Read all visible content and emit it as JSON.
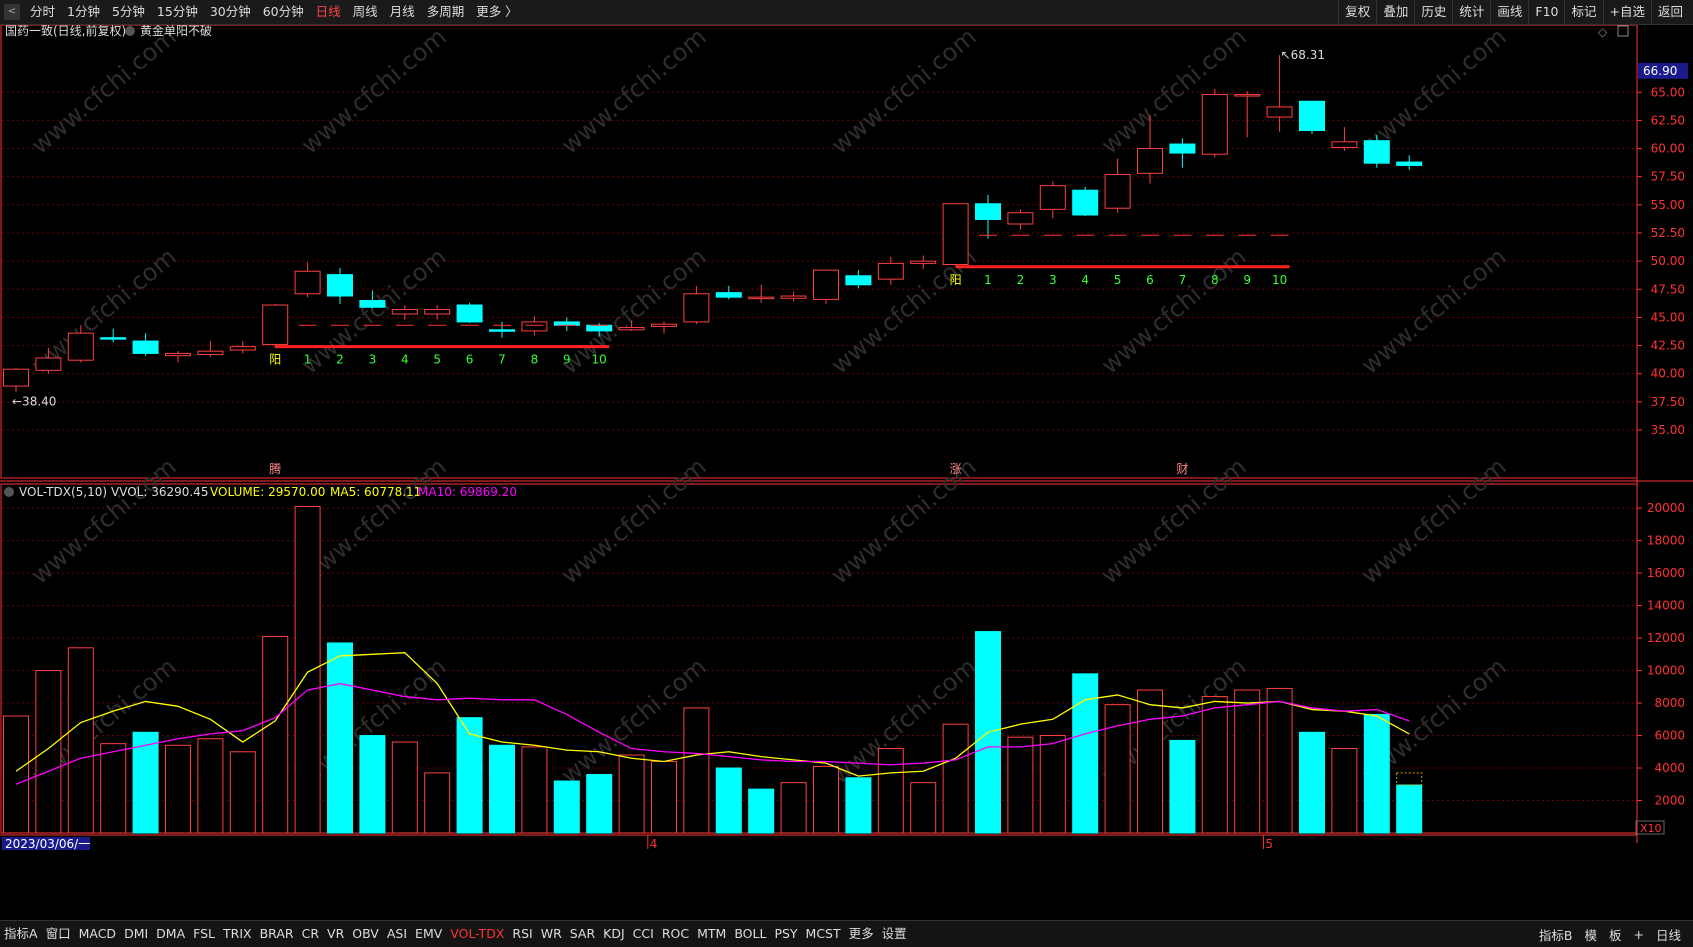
{
  "topbar": {
    "back_label": "<",
    "tabs": [
      "分时",
      "1分钟",
      "5分钟",
      "15分钟",
      "30分钟",
      "60分钟",
      "日线",
      "周线",
      "月线",
      "多周期",
      "更多 〉"
    ],
    "active_tab": "日线",
    "tools": [
      "复权",
      "叠加",
      "历史",
      "统计",
      "画线",
      "F10",
      "标记",
      "+自选",
      "返回"
    ]
  },
  "main_panel": {
    "title": "国药一致(日线,前复权)",
    "indicator": "黄金单阳不破",
    "price_box": "66.90",
    "high_label": "68.31",
    "low_label": "38.40",
    "event_markers": [
      {
        "index": 8,
        "label": "腾"
      },
      {
        "index": 29,
        "label": "涨"
      },
      {
        "index": 36,
        "label": "财"
      }
    ],
    "pattern1": {
      "start_label": "阳",
      "start_index": 8,
      "counts": [
        "1",
        "2",
        "3",
        "4",
        "5",
        "6",
        "7",
        "8",
        "9",
        "10"
      ],
      "level": 42.4,
      "dash_level": 44.3
    },
    "pattern2": {
      "start_label": "阳",
      "start_index": 29,
      "counts": [
        "1",
        "2",
        "3",
        "4",
        "5",
        "6",
        "7",
        "8",
        "9",
        "10"
      ],
      "level": 49.5,
      "dash_level": 52.3
    }
  },
  "volume_panel": {
    "name": "VOL-TDX(5,10)",
    "vvol": "VVOL: 36290.45",
    "volume": "VOLUME: 29570.00",
    "ma5": "MA5: 60778.11",
    "ma10": "MA10: 69869.20",
    "unit": "X10"
  },
  "date_axis": {
    "start_date": "2023/03/06/一",
    "month_marks": [
      {
        "index": 20,
        "label": "4"
      },
      {
        "index": 39,
        "label": "5"
      }
    ]
  },
  "bottombar": {
    "items": [
      "指标A",
      "窗口",
      "MACD",
      "DMI",
      "DMA",
      "FSL",
      "TRIX",
      "BRAR",
      "CR",
      "VR",
      "OBV",
      "ASI",
      "EMV",
      "VOL-TDX",
      "RSI",
      "WR",
      "SAR",
      "KDJ",
      "CCI",
      "ROC",
      "MTM",
      "BOLL",
      "PSY",
      "MCST",
      "更多",
      "设置"
    ],
    "active_item": "VOL-TDX",
    "right_items": [
      "指标B",
      "模",
      "板",
      "+",
      "日线"
    ]
  },
  "watermark": "www.cfchi.com",
  "colors": {
    "up": "#ff4040",
    "down": "#00ffff",
    "ma5": "#ffff00",
    "ma10": "#ff00ff",
    "grid": "#6a0000",
    "axis": "#ff3333",
    "pattern_count": "#33ff33",
    "pattern_start": "#ffff00"
  },
  "chart_data": [
    {
      "type": "candlestick",
      "title": "国药一致(日线,前复权)",
      "price_axis_ticks": [
        "35.00",
        "37.50",
        "40.00",
        "42.50",
        "45.00",
        "47.50",
        "50.00",
        "52.50",
        "55.00",
        "57.50",
        "60.00",
        "62.50",
        "65.00"
      ],
      "ylim": [
        31.0,
        69.2
      ],
      "ohlc": [
        {
          "o": 38.9,
          "h": 40.5,
          "l": 38.4,
          "c": 40.4
        },
        {
          "o": 40.3,
          "h": 42.3,
          "l": 40.0,
          "c": 41.4
        },
        {
          "o": 41.2,
          "h": 44.3,
          "l": 41.0,
          "c": 43.6
        },
        {
          "o": 43.2,
          "h": 44.0,
          "l": 42.8,
          "c": 43.1
        },
        {
          "o": 42.9,
          "h": 43.6,
          "l": 41.6,
          "c": 41.8
        },
        {
          "o": 41.6,
          "h": 42.0,
          "l": 41.0,
          "c": 41.8
        },
        {
          "o": 41.7,
          "h": 42.9,
          "l": 41.5,
          "c": 42.0
        },
        {
          "o": 42.1,
          "h": 42.9,
          "l": 41.8,
          "c": 42.4
        },
        {
          "o": 42.6,
          "h": 46.2,
          "l": 42.3,
          "c": 46.1
        },
        {
          "o": 47.1,
          "h": 49.9,
          "l": 46.8,
          "c": 49.1
        },
        {
          "o": 48.8,
          "h": 49.4,
          "l": 46.2,
          "c": 46.9
        },
        {
          "o": 46.5,
          "h": 47.4,
          "l": 45.8,
          "c": 45.9
        },
        {
          "o": 45.3,
          "h": 46.1,
          "l": 44.8,
          "c": 45.7
        },
        {
          "o": 45.3,
          "h": 46.1,
          "l": 44.8,
          "c": 45.7
        },
        {
          "o": 46.1,
          "h": 46.3,
          "l": 44.5,
          "c": 44.6
        },
        {
          "o": 43.9,
          "h": 44.6,
          "l": 43.2,
          "c": 43.8
        },
        {
          "o": 43.8,
          "h": 45.1,
          "l": 43.4,
          "c": 44.6
        },
        {
          "o": 44.6,
          "h": 45.0,
          "l": 43.8,
          "c": 44.3
        },
        {
          "o": 44.3,
          "h": 44.5,
          "l": 43.3,
          "c": 43.8
        },
        {
          "o": 43.9,
          "h": 44.7,
          "l": 43.8,
          "c": 44.1
        },
        {
          "o": 44.2,
          "h": 44.6,
          "l": 43.6,
          "c": 44.4
        },
        {
          "o": 44.6,
          "h": 47.8,
          "l": 44.4,
          "c": 47.1
        },
        {
          "o": 47.2,
          "h": 47.8,
          "l": 46.6,
          "c": 46.8
        },
        {
          "o": 46.8,
          "h": 47.9,
          "l": 46.3,
          "c": 46.8
        },
        {
          "o": 46.7,
          "h": 47.3,
          "l": 46.4,
          "c": 46.9
        },
        {
          "o": 46.6,
          "h": 49.2,
          "l": 46.2,
          "c": 49.2
        },
        {
          "o": 48.7,
          "h": 49.2,
          "l": 47.6,
          "c": 47.9
        },
        {
          "o": 48.4,
          "h": 50.4,
          "l": 47.9,
          "c": 49.8
        },
        {
          "o": 49.8,
          "h": 50.5,
          "l": 49.3,
          "c": 50.0
        },
        {
          "o": 49.7,
          "h": 55.1,
          "l": 49.6,
          "c": 55.1
        },
        {
          "o": 55.1,
          "h": 55.9,
          "l": 52.0,
          "c": 53.7
        },
        {
          "o": 53.3,
          "h": 54.6,
          "l": 52.8,
          "c": 54.3
        },
        {
          "o": 54.6,
          "h": 57.1,
          "l": 53.8,
          "c": 56.7
        },
        {
          "o": 56.3,
          "h": 56.6,
          "l": 54.0,
          "c": 54.1
        },
        {
          "o": 54.7,
          "h": 59.1,
          "l": 54.3,
          "c": 57.7
        },
        {
          "o": 57.8,
          "h": 63.0,
          "l": 56.9,
          "c": 60.0
        },
        {
          "o": 60.4,
          "h": 60.9,
          "l": 58.3,
          "c": 59.6
        },
        {
          "o": 59.5,
          "h": 65.3,
          "l": 59.2,
          "c": 64.8
        },
        {
          "o": 64.8,
          "h": 65.1,
          "l": 61.0,
          "c": 64.8
        },
        {
          "o": 62.8,
          "h": 68.3,
          "l": 61.5,
          "c": 63.7
        },
        {
          "o": 64.2,
          "h": 64.2,
          "l": 61.3,
          "c": 61.6
        },
        {
          "o": 60.1,
          "h": 61.9,
          "l": 59.8,
          "c": 60.6
        },
        {
          "o": 60.7,
          "h": 61.2,
          "l": 58.3,
          "c": 58.7
        },
        {
          "o": 58.8,
          "h": 59.4,
          "l": 58.1,
          "c": 58.5
        }
      ]
    },
    {
      "type": "bar",
      "title": "VOL-TDX(5,10)",
      "ylabel": "X10",
      "volume_axis_ticks": [
        "2000",
        "4000",
        "6000",
        "8000",
        "10000",
        "12000",
        "14000",
        "16000",
        "18000",
        "20000"
      ],
      "ylim": [
        0,
        20500
      ],
      "values": [
        7200,
        10000,
        11400,
        5500,
        6200,
        5400,
        5800,
        5000,
        12100,
        20100,
        11700,
        6000,
        5600,
        3700,
        7100,
        5400,
        5300,
        3200,
        3600,
        4800,
        4400,
        7700,
        4000,
        2700,
        3100,
        4100,
        3400,
        5200,
        3100,
        6700,
        12400,
        5900,
        6000,
        9800,
        7900,
        8800,
        5700,
        8400,
        8800,
        8900,
        6200,
        5200,
        7300,
        2957
      ],
      "up_flags": [
        1,
        1,
        1,
        1,
        0,
        1,
        1,
        1,
        1,
        1,
        0,
        0,
        1,
        1,
        0,
        0,
        1,
        0,
        0,
        1,
        1,
        1,
        0,
        0,
        1,
        1,
        0,
        1,
        1,
        1,
        0,
        1,
        1,
        0,
        1,
        1,
        0,
        1,
        1,
        1,
        0,
        1,
        0,
        0
      ],
      "series": [
        {
          "name": "MA5",
          "values": [
            3800,
            5200,
            6800,
            7500,
            8100,
            7800,
            7000,
            5600,
            6900,
            9900,
            10900,
            11000,
            11100,
            9200,
            6100,
            5600,
            5400,
            5100,
            5000,
            4600,
            4400,
            4800,
            5000,
            4700,
            4500,
            4300,
            3500,
            3700,
            3800,
            4600,
            6200,
            6700,
            7000,
            8200,
            8500,
            7900,
            7700,
            8100,
            8000,
            8100,
            7600,
            7500,
            7200,
            6100
          ]
        },
        {
          "name": "MA10",
          "values": [
            3000,
            3800,
            4600,
            5000,
            5400,
            5800,
            6100,
            6300,
            7100,
            8800,
            9200,
            8800,
            8400,
            8200,
            8300,
            8200,
            8200,
            7300,
            6200,
            5200,
            5000,
            4900,
            4700,
            4500,
            4400,
            4400,
            4300,
            4200,
            4300,
            4500,
            5300,
            5300,
            5500,
            6100,
            6600,
            7000,
            7200,
            7700,
            7900,
            8100,
            7700,
            7500,
            7600,
            6900
          ]
        }
      ]
    }
  ]
}
